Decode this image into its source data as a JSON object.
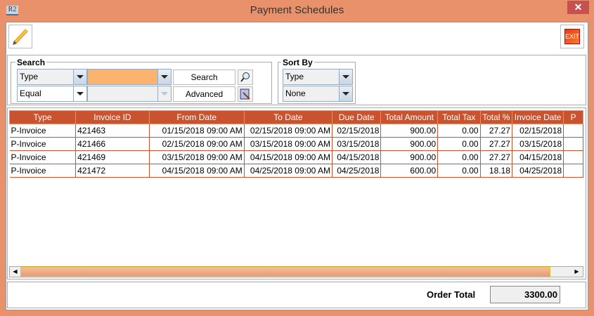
{
  "window": {
    "title": "Payment Schedules",
    "app_icon": "R2",
    "close": "✕"
  },
  "toolbar": {
    "edit_icon": "pencil-icon",
    "exit_label": "EXIT"
  },
  "search": {
    "legend": "Search",
    "field": "Type",
    "operator": "Equal",
    "value": "",
    "value2": "",
    "search_label": "Search",
    "advanced_label": "Advanced",
    "value_color": "#FBB36E"
  },
  "sort": {
    "legend": "Sort By",
    "primary": "Type",
    "secondary": "None"
  },
  "table": {
    "columns": [
      "Type",
      "Invoice ID",
      "From Date",
      "To Date",
      "Due Date",
      "Total Amount",
      "Total Tax",
      "Total %",
      "Invoice Date",
      "P"
    ],
    "rows": [
      [
        "P-Invoice",
        "421463",
        "01/15/2018 09:00 AM",
        "02/15/2018 09:00 AM",
        "02/15/2018",
        "900.00",
        "0.00",
        "27.27",
        "02/15/2018",
        ""
      ],
      [
        "P-Invoice",
        "421466",
        "02/15/2018 09:00 AM",
        "03/15/2018 09:00 AM",
        "03/15/2018",
        "900.00",
        "0.00",
        "27.27",
        "03/15/2018",
        ""
      ],
      [
        "P-Invoice",
        "421469",
        "03/15/2018 09:00 AM",
        "04/15/2018 09:00 AM",
        "04/15/2018",
        "900.00",
        "0.00",
        "27.27",
        "04/15/2018",
        ""
      ],
      [
        "P-Invoice",
        "421472",
        "04/15/2018 09:00 AM",
        "04/25/2018 09:00 AM",
        "04/25/2018",
        "600.00",
        "0.00",
        "18.18",
        "04/25/2018",
        ""
      ]
    ],
    "header_color": "#C9532F"
  },
  "footer": {
    "order_total_label": "Order Total",
    "order_total_value": "3300.00"
  }
}
